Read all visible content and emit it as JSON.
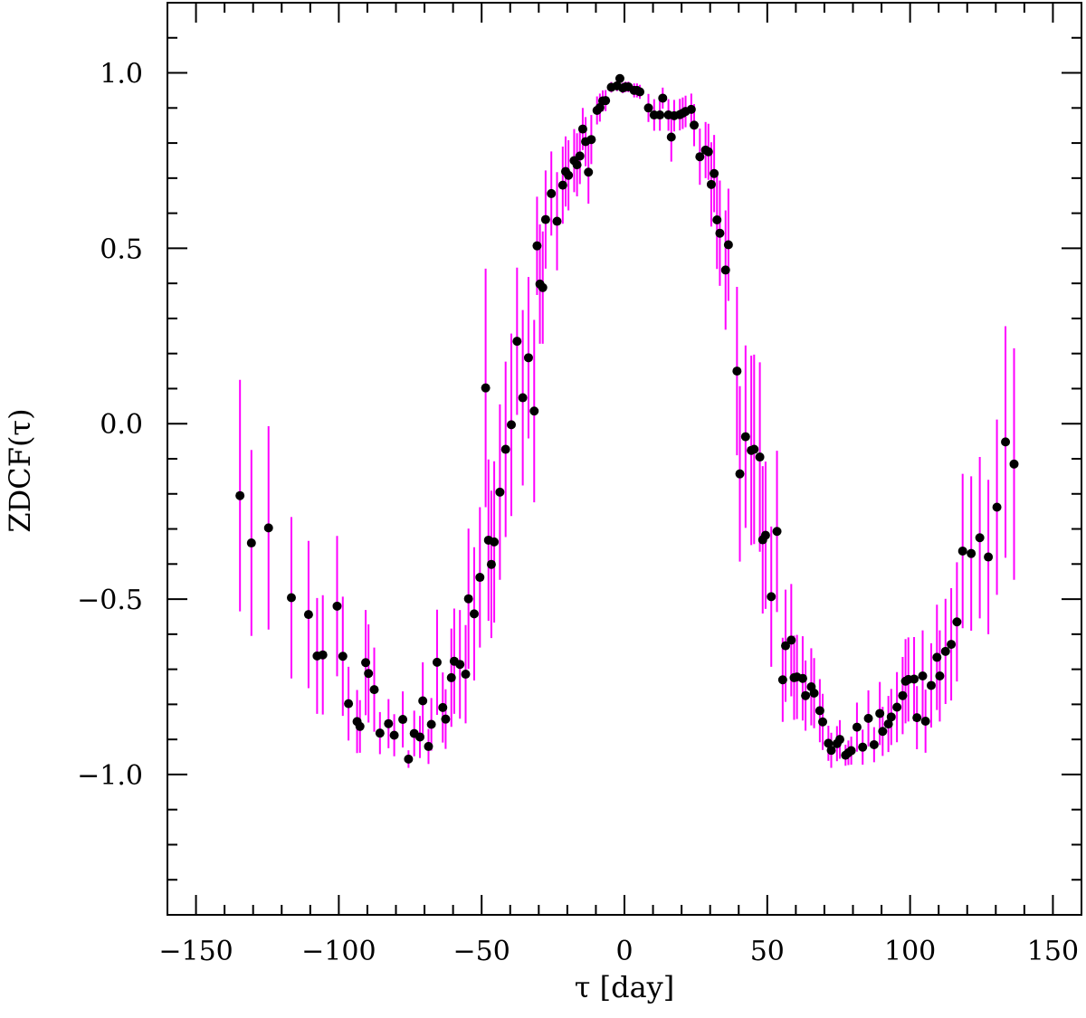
{
  "chart_data": {
    "type": "scatter",
    "title": "",
    "xlabel": "τ  [day]",
    "ylabel": "ZDCF(τ)",
    "xlim": [
      -160,
      160
    ],
    "ylim": [
      -1.4,
      1.2
    ],
    "xticks": [
      -150,
      -100,
      -50,
      0,
      50,
      100,
      150
    ],
    "xtick_labels": [
      "−150",
      "−100",
      "−50",
      "0",
      "50",
      "100",
      "150"
    ],
    "yticks": [
      -1.0,
      -0.5,
      0.0,
      0.5,
      1.0
    ],
    "ytick_labels": [
      "−1.0",
      "−0.5",
      "0.0",
      "0.5",
      "1.0"
    ],
    "grid": false,
    "legend": "none",
    "colors": {
      "points": "#000000",
      "errorbars": "#ff00ff"
    },
    "series": [
      {
        "points": [
          [
            -134.6,
            -0.205,
            0.33
          ],
          [
            -130.6,
            -0.34,
            0.265
          ],
          [
            -124.6,
            -0.297,
            0.29
          ],
          [
            -116.6,
            -0.496,
            0.23
          ],
          [
            -110.6,
            -0.544,
            0.21
          ],
          [
            -107.6,
            -0.662,
            0.165
          ],
          [
            -105.6,
            -0.659,
            0.17
          ],
          [
            -100.6,
            -0.52,
            0.2
          ],
          [
            -98.6,
            -0.663,
            0.17
          ],
          [
            -96.6,
            -0.798,
            0.105
          ],
          [
            -93.6,
            -0.849,
            0.09
          ],
          [
            -92.6,
            -0.863,
            0.075
          ],
          [
            -90.6,
            -0.681,
            0.15
          ],
          [
            -89.6,
            -0.712,
            0.14
          ],
          [
            -87.6,
            -0.758,
            0.12
          ],
          [
            -85.6,
            -0.882,
            0.06
          ],
          [
            -82.6,
            -0.855,
            0.07
          ],
          [
            -80.6,
            -0.888,
            0.06
          ],
          [
            -77.6,
            -0.843,
            0.08
          ],
          [
            -75.6,
            -0.956,
            0.025
          ],
          [
            -73.6,
            -0.883,
            0.065
          ],
          [
            -71.6,
            -0.893,
            0.06
          ],
          [
            -70.6,
            -0.79,
            0.11
          ],
          [
            -68.6,
            -0.92,
            0.05
          ],
          [
            -67.6,
            -0.857,
            0.075
          ],
          [
            -65.6,
            -0.68,
            0.15
          ],
          [
            -63.6,
            -0.809,
            0.1
          ],
          [
            -62.6,
            -0.842,
            0.085
          ],
          [
            -60.6,
            -0.724,
            0.14
          ],
          [
            -59.6,
            -0.677,
            0.15
          ],
          [
            -57.6,
            -0.686,
            0.155
          ],
          [
            -55.6,
            -0.714,
            0.14
          ],
          [
            -54.6,
            -0.499,
            0.2
          ],
          [
            -52.6,
            -0.542,
            0.19
          ],
          [
            -50.6,
            -0.438,
            0.2
          ],
          [
            -48.6,
            0.102,
            0.34
          ],
          [
            -47.6,
            -0.332,
            0.23
          ],
          [
            -46.6,
            -0.401,
            0.21
          ],
          [
            -45.6,
            -0.337,
            0.23
          ],
          [
            -43.6,
            -0.195,
            0.25
          ],
          [
            -41.6,
            -0.073,
            0.25
          ],
          [
            -39.6,
            -0.003,
            0.26
          ],
          [
            -37.6,
            0.235,
            0.21
          ],
          [
            -35.6,
            0.074,
            0.25
          ],
          [
            -33.6,
            0.188,
            0.23
          ],
          [
            -31.6,
            0.036,
            0.26
          ],
          [
            -30.6,
            0.507,
            0.14
          ],
          [
            -29.6,
            0.398,
            0.17
          ],
          [
            -28.6,
            0.388,
            0.16
          ],
          [
            -27.6,
            0.582,
            0.14
          ],
          [
            -25.6,
            0.656,
            0.12
          ],
          [
            -23.6,
            0.577,
            0.14
          ],
          [
            -21.6,
            0.68,
            0.11
          ],
          [
            -20.6,
            0.719,
            0.1
          ],
          [
            -19.6,
            0.708,
            0.1
          ],
          [
            -17.6,
            0.75,
            0.09
          ],
          [
            -16.6,
            0.738,
            0.09
          ],
          [
            -15.6,
            0.763,
            0.08
          ],
          [
            -14.6,
            0.84,
            0.06
          ],
          [
            -13.6,
            0.804,
            0.07
          ],
          [
            -12.6,
            0.717,
            0.09
          ],
          [
            -11.6,
            0.81,
            0.07
          ],
          [
            -9.6,
            0.893,
            0.04
          ],
          [
            -8.6,
            0.901,
            0.04
          ],
          [
            -7.6,
            0.92,
            0.03
          ],
          [
            -6.6,
            0.921,
            0.03
          ],
          [
            -4.6,
            0.959,
            0.015
          ],
          [
            -2.6,
            0.963,
            0.015
          ],
          [
            -1.6,
            0.984,
            0.01
          ],
          [
            -0.6,
            0.957,
            0.015
          ],
          [
            0.4,
            0.96,
            0.015
          ],
          [
            1.4,
            0.96,
            0.015
          ],
          [
            3.4,
            0.95,
            0.02
          ],
          [
            4.4,
            0.95,
            0.02
          ],
          [
            5.4,
            0.946,
            0.02
          ],
          [
            8.4,
            0.9,
            0.04
          ],
          [
            10.4,
            0.88,
            0.045
          ],
          [
            12.4,
            0.88,
            0.045
          ],
          [
            13.4,
            0.928,
            0.03
          ],
          [
            15.4,
            0.88,
            0.045
          ],
          [
            16.4,
            0.817,
            0.07
          ],
          [
            17.4,
            0.878,
            0.045
          ],
          [
            19.4,
            0.881,
            0.045
          ],
          [
            20.4,
            0.885,
            0.045
          ],
          [
            21.4,
            0.89,
            0.045
          ],
          [
            23.4,
            0.896,
            0.045
          ],
          [
            24.4,
            0.851,
            0.06
          ],
          [
            26.4,
            0.761,
            0.08
          ],
          [
            28.4,
            0.78,
            0.08
          ],
          [
            29.4,
            0.775,
            0.08
          ],
          [
            30.4,
            0.682,
            0.12
          ],
          [
            31.4,
            0.713,
            0.11
          ],
          [
            32.4,
            0.581,
            0.14
          ],
          [
            33.4,
            0.543,
            0.15
          ],
          [
            35.4,
            0.438,
            0.17
          ],
          [
            36.4,
            0.51,
            0.16
          ],
          [
            39.4,
            0.15,
            0.24
          ],
          [
            40.4,
            -0.143,
            0.25
          ],
          [
            42.4,
            -0.037,
            0.26
          ],
          [
            44.4,
            -0.076,
            0.27
          ],
          [
            45.4,
            -0.073,
            0.27
          ],
          [
            47.4,
            -0.095,
            0.27
          ],
          [
            48.4,
            -0.331,
            0.21
          ],
          [
            49.4,
            -0.318,
            0.21
          ],
          [
            51.4,
            -0.493,
            0.2
          ],
          [
            53.4,
            -0.307,
            0.23
          ],
          [
            55.4,
            -0.73,
            0.12
          ],
          [
            56.4,
            -0.633,
            0.16
          ],
          [
            58.4,
            -0.617,
            0.16
          ],
          [
            59.4,
            -0.724,
            0.12
          ],
          [
            60.4,
            -0.722,
            0.12
          ],
          [
            62.4,
            -0.726,
            0.12
          ],
          [
            63.4,
            -0.775,
            0.1
          ],
          [
            65.4,
            -0.75,
            0.11
          ],
          [
            66.4,
            -0.768,
            0.1
          ],
          [
            68.4,
            -0.818,
            0.09
          ],
          [
            69.4,
            -0.85,
            0.08
          ],
          [
            71.4,
            -0.911,
            0.05
          ],
          [
            72.4,
            -0.931,
            0.05
          ],
          [
            74.4,
            -0.912,
            0.05
          ],
          [
            75.4,
            -0.9,
            0.055
          ],
          [
            77.4,
            -0.945,
            0.03
          ],
          [
            78.4,
            -0.938,
            0.035
          ],
          [
            79.4,
            -0.932,
            0.04
          ],
          [
            81.4,
            -0.865,
            0.07
          ],
          [
            83.4,
            -0.922,
            0.05
          ],
          [
            85.4,
            -0.84,
            0.08
          ],
          [
            87.4,
            -0.915,
            0.05
          ],
          [
            89.4,
            -0.826,
            0.09
          ],
          [
            90.4,
            -0.877,
            0.07
          ],
          [
            92.4,
            -0.856,
            0.08
          ],
          [
            93.4,
            -0.836,
            0.08
          ],
          [
            95.4,
            -0.808,
            0.1
          ],
          [
            97.4,
            -0.775,
            0.11
          ],
          [
            98.4,
            -0.734,
            0.12
          ],
          [
            99.4,
            -0.729,
            0.12
          ],
          [
            101.4,
            -0.728,
            0.12
          ],
          [
            102.4,
            -0.838,
            0.09
          ],
          [
            104.4,
            -0.719,
            0.13
          ],
          [
            105.4,
            -0.848,
            0.09
          ],
          [
            107.4,
            -0.746,
            0.12
          ],
          [
            109.4,
            -0.666,
            0.15
          ],
          [
            110.4,
            -0.719,
            0.13
          ],
          [
            112.4,
            -0.649,
            0.15
          ],
          [
            114.4,
            -0.629,
            0.16
          ],
          [
            116.4,
            -0.565,
            0.17
          ],
          [
            118.4,
            -0.363,
            0.22
          ],
          [
            121.4,
            -0.37,
            0.22
          ],
          [
            124.4,
            -0.325,
            0.23
          ],
          [
            127.4,
            -0.38,
            0.22
          ],
          [
            130.4,
            -0.238,
            0.25
          ],
          [
            133.4,
            -0.052,
            0.33
          ],
          [
            136.4,
            -0.115,
            0.33
          ]
        ]
      }
    ]
  }
}
